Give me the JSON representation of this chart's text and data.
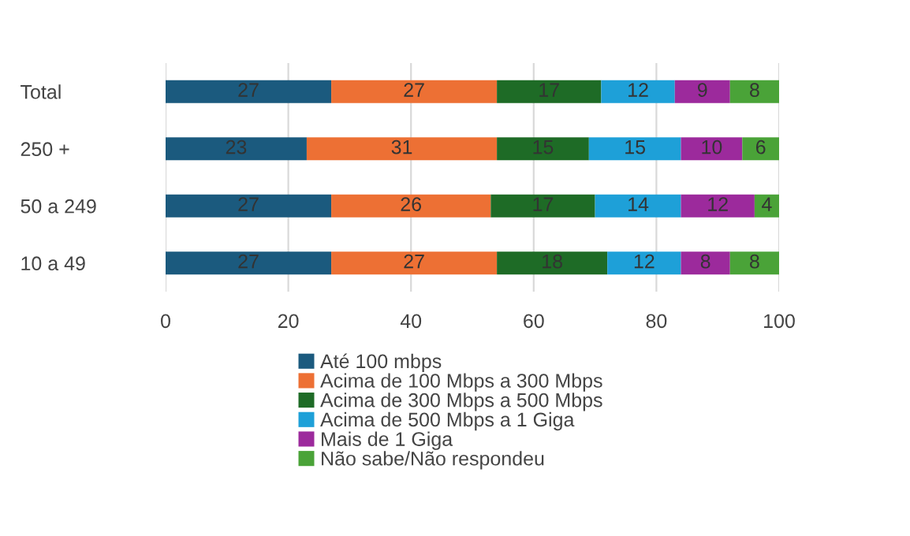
{
  "chart_data": {
    "type": "bar",
    "orientation": "horizontal",
    "stacked": true,
    "categories": [
      "Total",
      "250 +",
      "50 a 249",
      "10 a 49"
    ],
    "series": [
      {
        "name": "Até 100 mbps",
        "color": "#1b5a7e",
        "values": [
          27,
          23,
          27,
          27
        ]
      },
      {
        "name": "Acima de 100 Mbps a 300 Mbps",
        "color": "#ed7034",
        "values": [
          27,
          31,
          26,
          27
        ]
      },
      {
        "name": "Acima de 300 Mbps a 500 Mbps",
        "color": "#1e6b26",
        "values": [
          17,
          15,
          17,
          18
        ]
      },
      {
        "name": "Acima de 500 Mbps a 1 Giga",
        "color": "#1ea0d8",
        "values": [
          12,
          15,
          14,
          12
        ]
      },
      {
        "name": "Mais de 1 Giga",
        "color": "#9c2a9c",
        "values": [
          9,
          10,
          12,
          8
        ]
      },
      {
        "name": "Não sabe/Não respondeu",
        "color": "#4aa338",
        "values": [
          8,
          6,
          4,
          8
        ]
      }
    ],
    "xlim": [
      0,
      100
    ],
    "xticks": [
      0,
      20,
      40,
      60,
      80,
      100
    ],
    "grid": "x",
    "legend": "bottom",
    "data_labels": true
  }
}
